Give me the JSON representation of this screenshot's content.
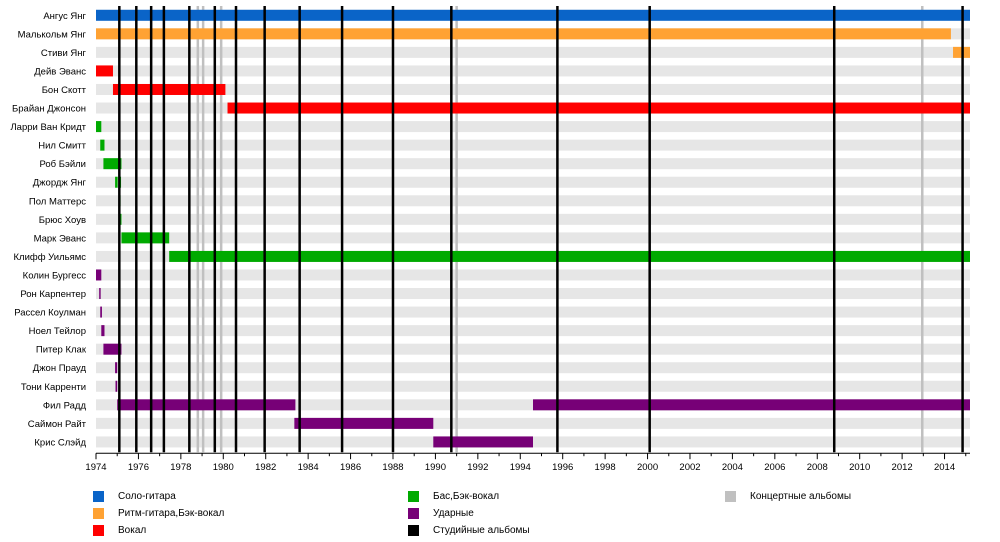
{
  "chart_data": {
    "type": "timeline",
    "x_range": [
      1974.0,
      2015.2
    ],
    "x_tick_start": 1974,
    "x_tick_step": 2,
    "x_tick_end": 2014,
    "members": [
      "Ангус Янг",
      "Малькольм Янг",
      "Стиви Янг",
      "Дейв Эванс",
      "Бон Скотт",
      "Брайан Джонсон",
      "Ларри Ван Кридт",
      "Нил Смитт",
      "Роб Бэйли",
      "Джордж Янг",
      "Пол Маттерс",
      "Брюс Хоув",
      "Марк Эванс",
      "Клифф Уильямс",
      "Колин Бургесс",
      "Рон Карпентер",
      "Рассел Коулман",
      "Ноел Тейлор",
      "Питер Клак",
      "Джон Прауд",
      "Тони Карренти",
      "Фил Радд",
      "Саймон Райт",
      "Крис Слэйд"
    ],
    "roles": [
      {
        "key": "solo",
        "label": "Соло-гитара",
        "color": "#0A64C8"
      },
      {
        "key": "rhythm",
        "label": "Ритм-гитара,Бэк-вокал",
        "color": "#FFA233"
      },
      {
        "key": "vocal",
        "label": "Вокал",
        "color": "#FF0000"
      },
      {
        "key": "bass",
        "label": "Бас,Бэк-вокал",
        "color": "#00AA00"
      },
      {
        "key": "drums",
        "label": "Ударные",
        "color": "#770077"
      },
      {
        "key": "studio",
        "label": "Студийные альбомы",
        "color": "#000000"
      },
      {
        "key": "live",
        "label": "Концертные альбомы",
        "color": "#C0C0C0"
      }
    ],
    "bars": [
      {
        "member": 0,
        "role": "solo",
        "start": 1974.0,
        "end": 2015.2
      },
      {
        "member": 1,
        "role": "rhythm",
        "start": 1974.0,
        "end": 2014.3
      },
      {
        "member": 2,
        "role": "rhythm",
        "start": 2014.4,
        "end": 2015.2
      },
      {
        "member": 3,
        "role": "vocal",
        "start": 1974.0,
        "end": 1974.8
      },
      {
        "member": 4,
        "role": "vocal",
        "start": 1974.8,
        "end": 1980.1
      },
      {
        "member": 5,
        "role": "vocal",
        "start": 1980.2,
        "end": 2015.2
      },
      {
        "member": 6,
        "role": "bass",
        "start": 1974.0,
        "end": 1974.25
      },
      {
        "member": 6,
        "role": "bass",
        "start": 1975.08,
        "end": 1975.14
      },
      {
        "member": 7,
        "role": "bass",
        "start": 1974.2,
        "end": 1974.4
      },
      {
        "member": 8,
        "role": "bass",
        "start": 1974.35,
        "end": 1975.2
      },
      {
        "member": 9,
        "role": "bass",
        "start": 1974.9,
        "end": 1975.02
      },
      {
        "member": 9,
        "role": "bass",
        "start": 1975.08,
        "end": 1975.18
      },
      {
        "member": 10,
        "role": "bass",
        "start": 1975.1,
        "end": 1975.16
      },
      {
        "member": 11,
        "role": "bass",
        "start": 1975.12,
        "end": 1975.2
      },
      {
        "member": 12,
        "role": "bass",
        "start": 1975.2,
        "end": 1977.45
      },
      {
        "member": 13,
        "role": "bass",
        "start": 1977.45,
        "end": 2015.2
      },
      {
        "member": 14,
        "role": "drums",
        "start": 1974.0,
        "end": 1974.25
      },
      {
        "member": 15,
        "role": "drums",
        "start": 1974.15,
        "end": 1974.22
      },
      {
        "member": 16,
        "role": "drums",
        "start": 1974.2,
        "end": 1974.28
      },
      {
        "member": 17,
        "role": "drums",
        "start": 1974.25,
        "end": 1974.4
      },
      {
        "member": 18,
        "role": "drums",
        "start": 1974.35,
        "end": 1975.2
      },
      {
        "member": 19,
        "role": "drums",
        "start": 1974.9,
        "end": 1975.0
      },
      {
        "member": 20,
        "role": "drums",
        "start": 1974.92,
        "end": 1975.0
      },
      {
        "member": 21,
        "role": "drums",
        "start": 1975.0,
        "end": 1983.4
      },
      {
        "member": 21,
        "role": "drums",
        "start": 1994.6,
        "end": 2015.2
      },
      {
        "member": 22,
        "role": "drums",
        "start": 1983.35,
        "end": 1989.9
      },
      {
        "member": 23,
        "role": "drums",
        "start": 1989.9,
        "end": 1994.6
      }
    ],
    "studio_albums": [
      1975.1,
      1975.9,
      1976.6,
      1977.2,
      1978.4,
      1979.6,
      1980.6,
      1981.95,
      1983.6,
      1985.6,
      1988.0,
      1990.75,
      1995.75,
      2000.1,
      2008.8,
      2014.85
    ],
    "live_albums": [
      1978.8,
      1979.05,
      1979.9,
      1991.0,
      2012.95
    ]
  }
}
